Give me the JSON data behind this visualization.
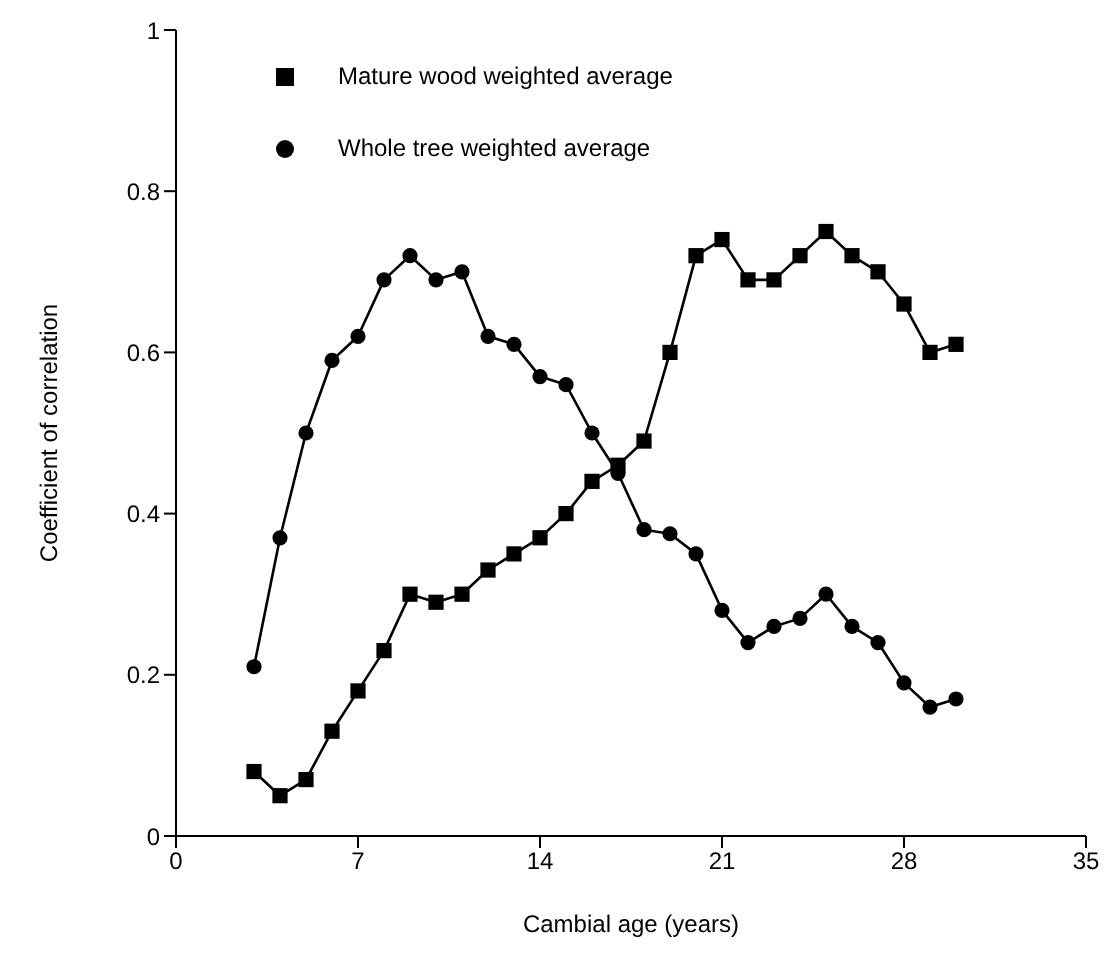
{
  "chart_data": {
    "type": "line",
    "xlabel": "Cambial age (years)",
    "ylabel": "Coefficient of correlation",
    "x": [
      3,
      4,
      5,
      6,
      7,
      8,
      9,
      10,
      11,
      12,
      13,
      14,
      15,
      16,
      17,
      18,
      19,
      20,
      21,
      22,
      23,
      24,
      25,
      26,
      27,
      28,
      29,
      30
    ],
    "xlim": [
      0,
      35
    ],
    "xticks": [
      0,
      7,
      14,
      21,
      28,
      35
    ],
    "ylim": [
      0,
      1
    ],
    "yticks": [
      0,
      0.2,
      0.4,
      0.6,
      0.8,
      1
    ],
    "grid": false,
    "legend": "top left",
    "series": [
      {
        "name": "Whole tree weighted average",
        "color": "#000000",
        "marker": "circle",
        "values": [
          0.21,
          0.37,
          0.5,
          0.59,
          0.62,
          0.69,
          0.72,
          0.69,
          0.7,
          0.62,
          0.61,
          0.57,
          0.56,
          0.5,
          0.45,
          0.38,
          0.375,
          0.35,
          0.28,
          0.24,
          0.26,
          0.27,
          0.3,
          0.26,
          0.24,
          0.19,
          0.16,
          0.17
        ]
      },
      {
        "name": "Mature wood weighted average",
        "color": "#000000",
        "marker": "square",
        "values": [
          0.08,
          0.05,
          0.07,
          0.13,
          0.18,
          0.23,
          0.3,
          0.29,
          0.3,
          0.33,
          0.35,
          0.37,
          0.4,
          0.44,
          0.46,
          0.49,
          0.6,
          0.72,
          0.74,
          0.69,
          0.69,
          0.72,
          0.75,
          0.72,
          0.7,
          0.66,
          0.6,
          0.61
        ]
      }
    ]
  }
}
